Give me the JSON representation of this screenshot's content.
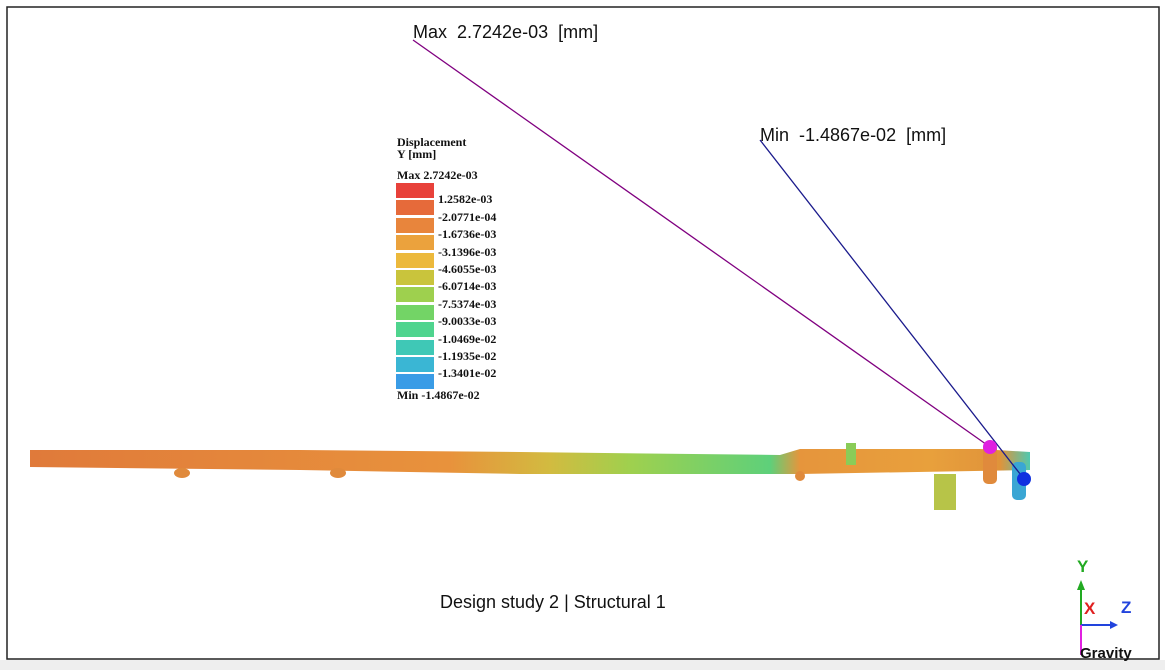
{
  "annotations": {
    "max": "Max  2.7242e-03  [mm]",
    "min": "Min  -1.4867e-02  [mm]"
  },
  "legend": {
    "title": [
      "Displacement",
      "Y [mm]"
    ],
    "max": "Max 2.7242e-03",
    "labels": [
      "1.2582e-03",
      "-2.0771e-04",
      "-1.6736e-03",
      "-3.1396e-03",
      "-4.6055e-03",
      "-6.0714e-03",
      "-7.5374e-03",
      "-9.0033e-03",
      "-1.0469e-02",
      "-1.1935e-02",
      "-1.3401e-02"
    ],
    "min": "Min -1.4867e-02"
  },
  "caption": "Design study 2 | Structural 1",
  "triad": {
    "y": "Y",
    "x": "X",
    "z": "Z",
    "gravity": "Gravity"
  }
}
